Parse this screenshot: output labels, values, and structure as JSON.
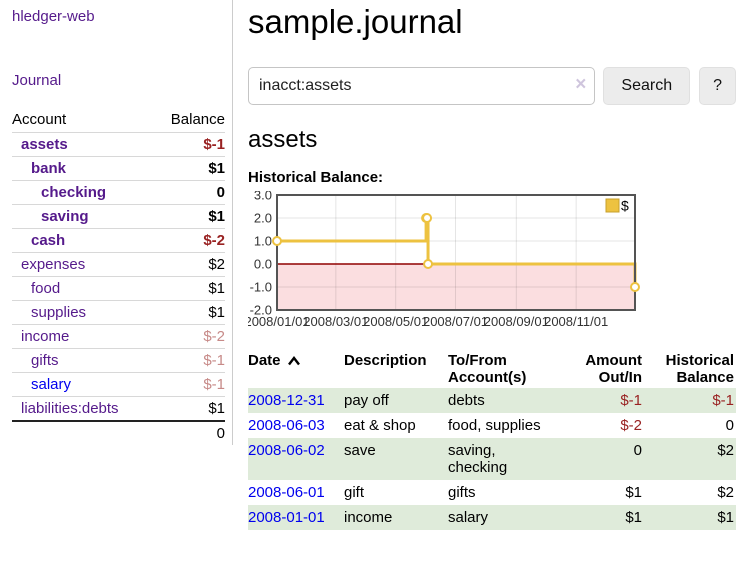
{
  "sidebar": {
    "app_title": "hledger-web",
    "journal_link": "Journal",
    "accounts_header": {
      "account": "Account",
      "balance": "Balance"
    },
    "accounts": [
      {
        "name": "assets",
        "balance": "$-1",
        "depth": 1,
        "selected": true,
        "visited": true,
        "balance_style": "neg-strong"
      },
      {
        "name": "bank",
        "balance": "$1",
        "depth": 2,
        "selected": true,
        "visited": true,
        "balance_style": ""
      },
      {
        "name": "checking",
        "balance": "0",
        "depth": 3,
        "selected": true,
        "visited": true,
        "balance_style": ""
      },
      {
        "name": "saving",
        "balance": "$1",
        "depth": 3,
        "selected": true,
        "visited": true,
        "balance_style": ""
      },
      {
        "name": "cash",
        "balance": "$-2",
        "depth": 2,
        "selected": true,
        "visited": true,
        "balance_style": "neg-strong"
      },
      {
        "name": "expenses",
        "balance": "$2",
        "depth": 1,
        "selected": false,
        "visited": true,
        "balance_style": ""
      },
      {
        "name": "food",
        "balance": "$1",
        "depth": 2,
        "selected": false,
        "visited": true,
        "balance_style": ""
      },
      {
        "name": "supplies",
        "balance": "$1",
        "depth": 2,
        "selected": false,
        "visited": true,
        "balance_style": ""
      },
      {
        "name": "income",
        "balance": "$-2",
        "depth": 1,
        "selected": false,
        "visited": true,
        "balance_style": "neg-soft"
      },
      {
        "name": "gifts",
        "balance": "$-1",
        "depth": 2,
        "selected": false,
        "visited": true,
        "balance_style": "neg-soft"
      },
      {
        "name": "salary",
        "balance": "$-1",
        "depth": 2,
        "selected": false,
        "visited": false,
        "balance_style": "neg-soft"
      },
      {
        "name": "liabilities:debts",
        "balance": "$1",
        "depth": 1,
        "selected": false,
        "visited": true,
        "balance_style": ""
      }
    ],
    "total": "0"
  },
  "main": {
    "title": "sample.journal",
    "search": {
      "value": "inacct:assets",
      "clear_icon": "×",
      "search_button": "Search",
      "help_button": "?"
    },
    "account_heading": "assets",
    "chart_label": "Historical Balance:"
  },
  "chart_data": {
    "type": "line",
    "title": "Historical Balance",
    "step": true,
    "series": [
      {
        "name": "$",
        "color": "#edc240",
        "x": [
          "2008-01-01",
          "2008-06-01",
          "2008-06-02",
          "2008-06-03",
          "2008-12-31"
        ],
        "y": [
          1,
          2,
          2,
          0,
          -1
        ]
      }
    ],
    "xlim": [
      "2008-01-01",
      "2008-12-31"
    ],
    "ylim": [
      -2,
      3
    ],
    "y_ticks": [
      "3.0",
      "2.0",
      "1.0",
      "0.0",
      "-1.0",
      "-2.0"
    ],
    "y_tick_values": [
      3,
      2,
      1,
      0,
      -1,
      -2
    ],
    "x_ticks": [
      "2008/01/01",
      "2008/03/01",
      "2008/05/01",
      "2008/07/01",
      "2008/09/01",
      "2008/11/01"
    ],
    "grid": true,
    "legend_position": "top-right",
    "legend_label": "$",
    "colors": {
      "negative_region": "#fbdee0",
      "zero_line": "#900000",
      "plot_border": "#545454",
      "grid_line": "rgba(0,0,0,0.10)",
      "marker_fill": "#ffffff"
    }
  },
  "register": {
    "headers": {
      "date": "Date",
      "description": "Description",
      "tofrom": "To/From Account(s)",
      "amount": "Amount Out/In",
      "balance": "Historical Balance"
    },
    "rows": [
      {
        "date": "2008-12-31",
        "description": "pay off",
        "accounts": "debts",
        "amount": "$-1",
        "amount_negative": true,
        "balance": "$-1",
        "balance_negative": true
      },
      {
        "date": "2008-06-03",
        "description": "eat & shop",
        "accounts": "food, supplies",
        "amount": "$-2",
        "amount_negative": true,
        "balance": "0",
        "balance_negative": false
      },
      {
        "date": "2008-06-02",
        "description": "save",
        "accounts": "saving, checking",
        "amount": "0",
        "amount_negative": false,
        "balance": "$2",
        "balance_negative": false
      },
      {
        "date": "2008-06-01",
        "description": "gift",
        "accounts": "gifts",
        "amount": "$1",
        "amount_negative": false,
        "balance": "$2",
        "balance_negative": false
      },
      {
        "date": "2008-01-01",
        "description": "income",
        "accounts": "salary",
        "amount": "$1",
        "amount_negative": false,
        "balance": "$1",
        "balance_negative": false
      }
    ]
  }
}
